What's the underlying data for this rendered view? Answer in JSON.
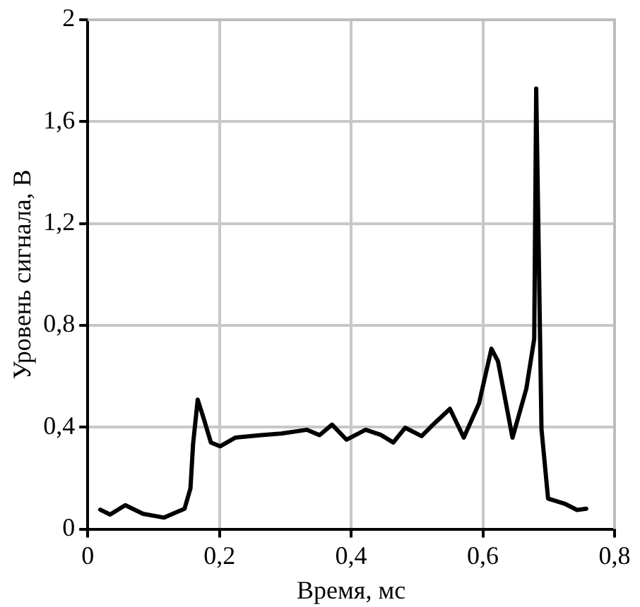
{
  "chart_data": {
    "type": "line",
    "xlabel": "Время, мс",
    "ylabel": "Уровень сигнала, В",
    "xlim": [
      0,
      0.8
    ],
    "ylim": [
      0,
      2
    ],
    "xticks": [
      0,
      {
        "value": 0.2,
        "label": "0,2"
      },
      {
        "value": 0.4,
        "label": "0,4"
      },
      {
        "value": 0.6,
        "label": "0,6"
      },
      {
        "value": 0.8,
        "label": "0,8"
      }
    ],
    "yticks": [
      0,
      {
        "value": 0.4,
        "label": "0,4"
      },
      {
        "value": 0.8,
        "label": "0,8"
      },
      {
        "value": 1.2,
        "label": "1,2"
      },
      {
        "value": 1.6,
        "label": "1,6"
      },
      2
    ],
    "grid": true,
    "legend": false,
    "marker": "none",
    "line_style": "solid",
    "series": [
      {
        "color": "#000000",
        "x": [
          0.019,
          0.034,
          0.057,
          0.084,
          0.116,
          0.147,
          0.156,
          0.16,
          0.167,
          0.176,
          0.187,
          0.201,
          0.224,
          0.263,
          0.294,
          0.333,
          0.352,
          0.371,
          0.393,
          0.422,
          0.445,
          0.464,
          0.482,
          0.507,
          0.526,
          0.55,
          0.571,
          0.594,
          0.613,
          0.623,
          0.645,
          0.666,
          0.678,
          0.681,
          0.689,
          0.699,
          0.724,
          0.743,
          0.757
        ],
        "values": [
          0.076,
          0.057,
          0.094,
          0.06,
          0.045,
          0.08,
          0.16,
          0.335,
          0.508,
          0.435,
          0.34,
          0.325,
          0.359,
          0.369,
          0.375,
          0.39,
          0.369,
          0.41,
          0.351,
          0.39,
          0.37,
          0.34,
          0.398,
          0.365,
          0.414,
          0.472,
          0.359,
          0.492,
          0.708,
          0.659,
          0.359,
          0.551,
          0.747,
          1.73,
          0.394,
          0.12,
          0.1,
          0.075,
          0.08
        ]
      }
    ]
  }
}
